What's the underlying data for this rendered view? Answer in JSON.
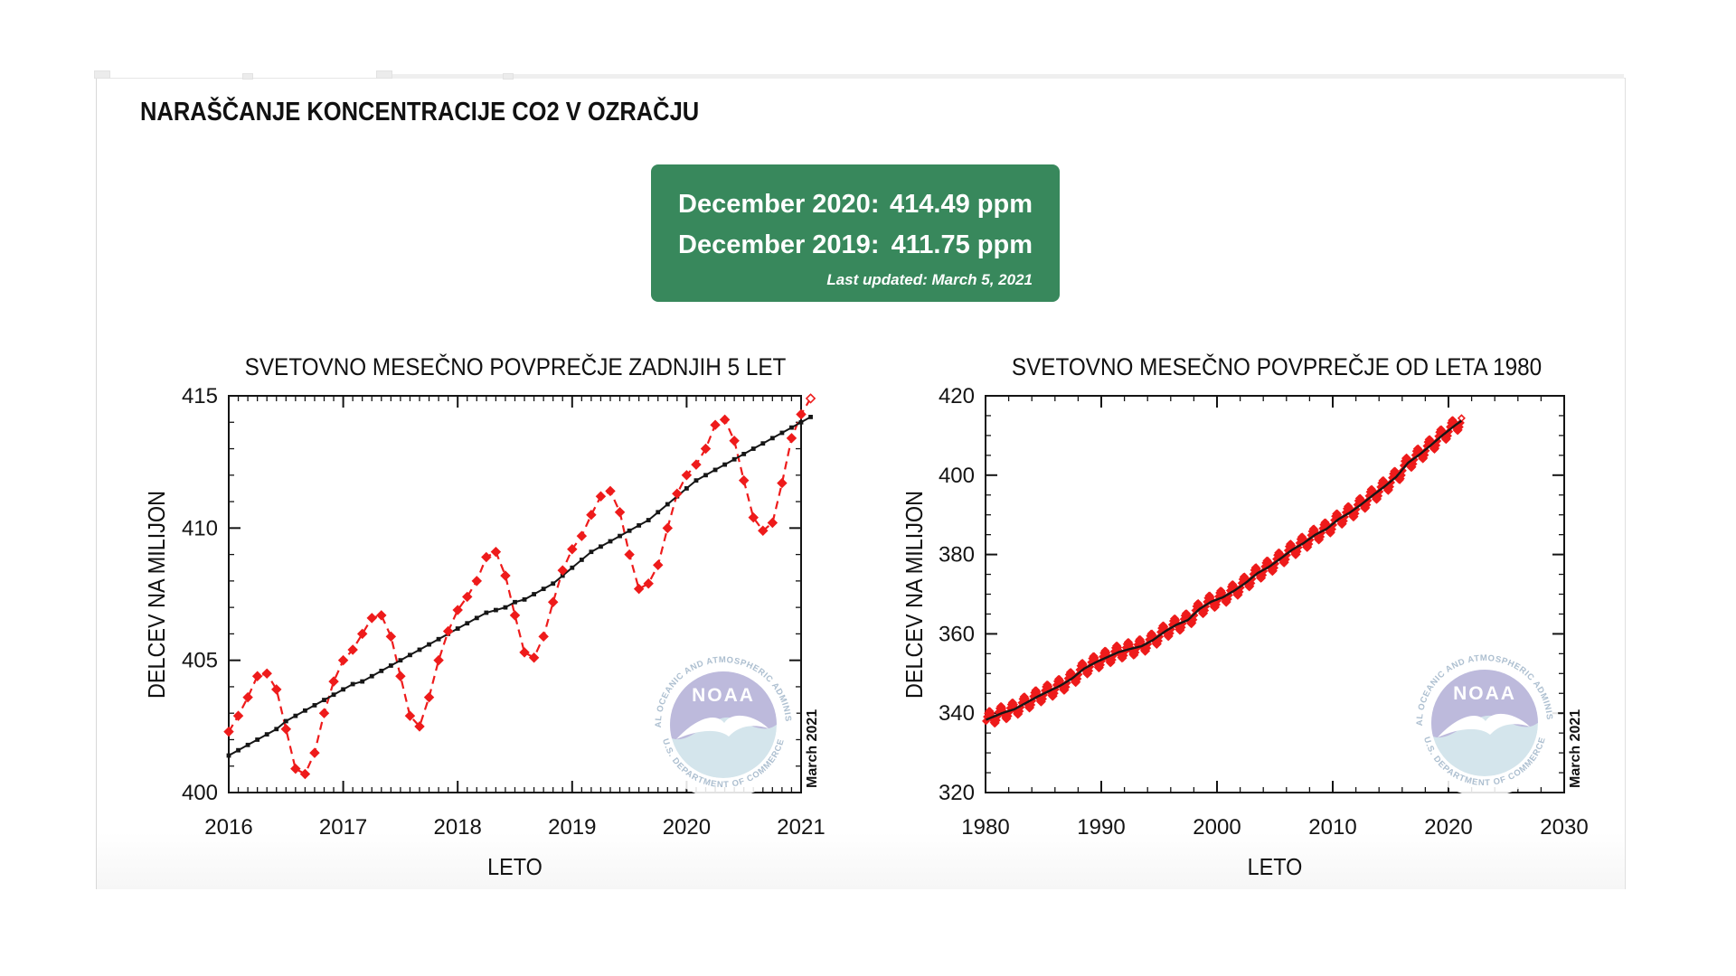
{
  "page": {
    "title": "NARAŠČANJE KONCENTRACIJE CO2 V OZRAČJU"
  },
  "summary_box": {
    "bg_color": "#38885c",
    "rows": [
      {
        "label": "December 2020:",
        "value": "414.49 ppm"
      },
      {
        "label": "December 2019:",
        "value": "411.75 ppm"
      }
    ],
    "updated": "Last updated: March 5, 2021"
  },
  "noaa_logo": {
    "acronym": "NOAA",
    "ring_top_text": "NATIONAL OCEANIC AND ATMOSPHERIC ADMINISTRATION",
    "ring_bottom_text": "U.S. DEPARTMENT OF COMMERCE",
    "top_half_color": "#b5b1d8",
    "bottom_half_color": "#cfe2ea",
    "ring_text_color": "#a2b7ca"
  },
  "chart_data": [
    {
      "id": "last5",
      "type": "line",
      "title": "SVETOVNO MESEČNO POVPREČJE ZADNJIH 5 LET",
      "xlabel": "LETO",
      "ylabel": "DELCEV NA MILIJON",
      "stamp": "March 2021",
      "xlim": [
        2016,
        2021
      ],
      "ylim": [
        400,
        415
      ],
      "x_ticks": [
        2016,
        2017,
        2018,
        2019,
        2020,
        2021
      ],
      "y_ticks": [
        400,
        405,
        410,
        415
      ],
      "x_minor_step_years": 0.08333,
      "y_minor_step": 1,
      "grid": false,
      "legend": "none",
      "start_year": 2016,
      "months_per_point": 1,
      "series": [
        {
          "id": "monthly_mean",
          "color": "#ee1b1b",
          "style": "dashed",
          "marker": "diamond",
          "values": [
            402.3,
            402.9,
            403.6,
            404.4,
            404.5,
            403.9,
            402.4,
            400.9,
            400.7,
            401.5,
            403.0,
            404.2,
            405.0,
            405.4,
            406.0,
            406.6,
            406.7,
            405.9,
            404.4,
            402.9,
            402.5,
            403.6,
            405.0,
            406.1,
            406.9,
            407.4,
            408.0,
            408.9,
            409.1,
            408.2,
            406.7,
            405.3,
            405.1,
            405.9,
            407.2,
            408.4,
            409.2,
            409.7,
            410.5,
            411.2,
            411.4,
            410.6,
            409.0,
            407.7,
            407.9,
            408.6,
            410.0,
            411.3,
            412.0,
            412.4,
            413.0,
            413.9,
            414.1,
            413.3,
            411.8,
            410.4,
            409.9,
            410.2,
            411.7,
            413.4,
            414.3,
            414.9
          ]
        },
        {
          "id": "trend",
          "color": "#161616",
          "style": "solid",
          "marker": "square",
          "values": [
            401.4,
            401.6,
            401.8,
            402.0,
            402.2,
            402.4,
            402.7,
            402.9,
            403.1,
            403.3,
            403.5,
            403.7,
            403.9,
            404.1,
            404.2,
            404.4,
            404.6,
            404.8,
            405.0,
            405.2,
            405.4,
            405.6,
            405.8,
            406.0,
            406.2,
            406.4,
            406.6,
            406.8,
            406.9,
            407.0,
            407.2,
            407.3,
            407.5,
            407.7,
            407.9,
            408.2,
            408.5,
            408.8,
            409.1,
            409.3,
            409.5,
            409.7,
            409.9,
            410.1,
            410.3,
            410.6,
            410.9,
            411.2,
            411.5,
            411.8,
            412.0,
            412.2,
            412.4,
            412.6,
            412.8,
            413.0,
            413.2,
            413.4,
            413.6,
            413.8,
            414.0,
            414.2
          ]
        }
      ]
    },
    {
      "id": "since1980",
      "type": "line",
      "title": "SVETOVNO MESEČNO POVPREČJE OD LETA 1980",
      "xlabel": "LETO",
      "ylabel": "DELCEV NA MILIJON",
      "stamp": "March 2021",
      "xlim": [
        1980,
        2030
      ],
      "ylim": [
        320,
        420
      ],
      "x_ticks": [
        1980,
        1990,
        2000,
        2010,
        2020,
        2030
      ],
      "y_ticks": [
        320,
        340,
        360,
        380,
        400,
        420
      ],
      "x_minor_step_years": 2,
      "y_minor_step": 5,
      "grid": false,
      "legend": "none",
      "annual_years_start": 1980,
      "annual_trend": [
        338.9,
        340.1,
        341.0,
        342.6,
        344.2,
        345.6,
        347.0,
        348.8,
        351.2,
        352.8,
        354.1,
        355.4,
        356.2,
        356.9,
        358.5,
        360.6,
        362.3,
        363.5,
        366.3,
        368.1,
        369.2,
        370.9,
        372.9,
        375.3,
        376.9,
        379.0,
        381.2,
        382.9,
        385.0,
        386.5,
        388.9,
        390.6,
        392.7,
        395.0,
        397.2,
        399.6,
        403.1,
        405.2,
        407.6,
        410.1,
        412.4,
        414.5
      ],
      "seasonal_amplitude_ppm": 1.9,
      "data_end_year": 2021.17,
      "monthly_color": "#ee1b1b",
      "trend_color": "#161616"
    }
  ]
}
